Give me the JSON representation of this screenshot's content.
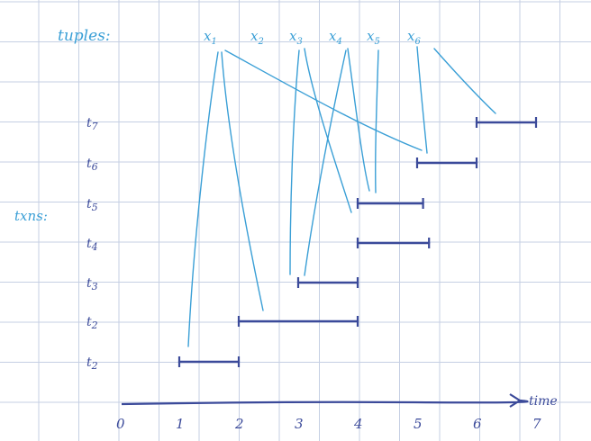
{
  "labels": {
    "tuples": "tuples:",
    "txns": "txns:",
    "time": "time"
  },
  "tuples": [
    "x1",
    "x2",
    "x3",
    "x4",
    "x5",
    "x6"
  ],
  "transactions": [
    {
      "label": "t7",
      "start": 6,
      "end": 7
    },
    {
      "label": "t6",
      "start": 5,
      "end": 6
    },
    {
      "label": "t5",
      "start": 4,
      "end": 5.1
    },
    {
      "label": "t4",
      "start": 4,
      "end": 5.2
    },
    {
      "label": "t3",
      "start": 3,
      "end": 4
    },
    {
      "label": "t2",
      "start": 2,
      "end": 4
    },
    {
      "label": "t2",
      "start": 1,
      "end": 2
    }
  ],
  "time_ticks": [
    "0",
    "1",
    "2",
    "3",
    "4",
    "5",
    "6",
    "7"
  ],
  "colors": {
    "grid": "#c5cfe3",
    "tuple_ink": "#3a9fd6",
    "txn_ink": "#3b4a9a"
  }
}
